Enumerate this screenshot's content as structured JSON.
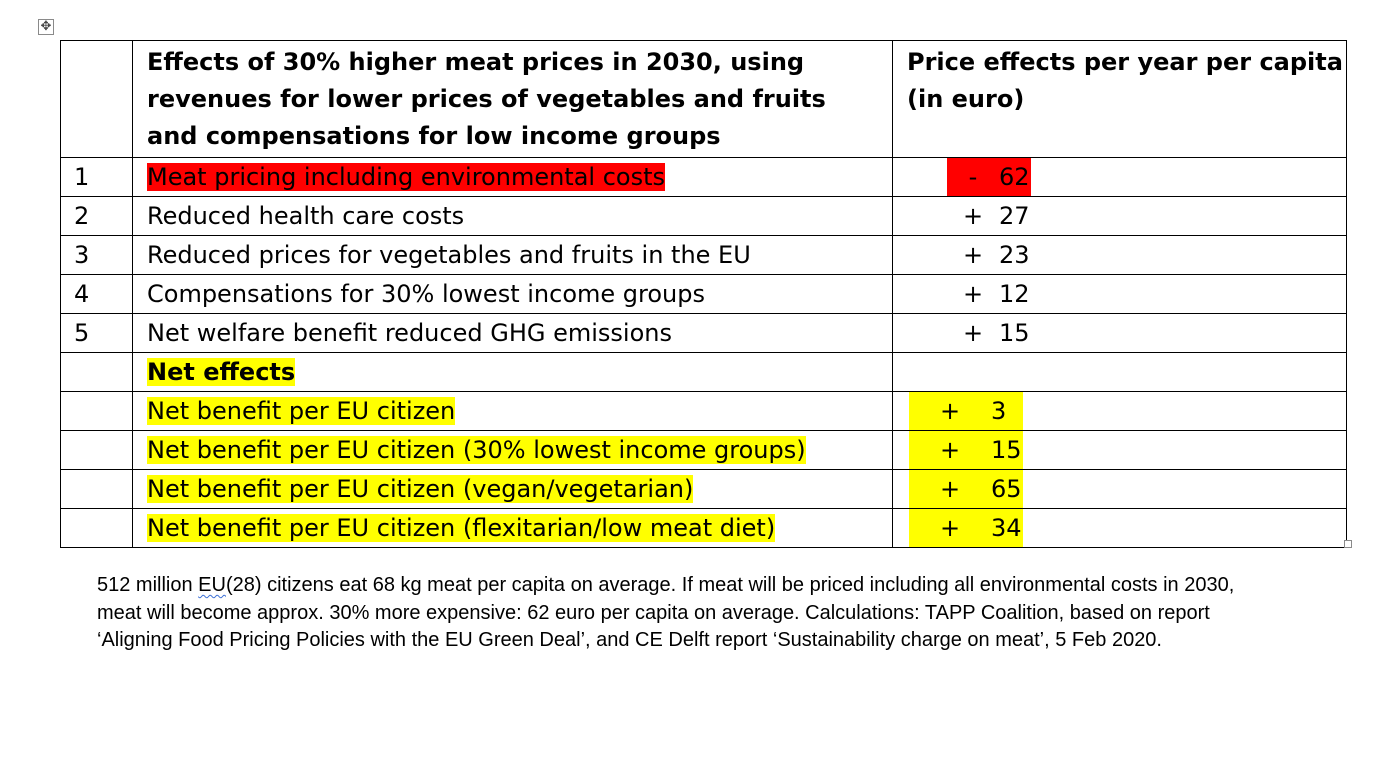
{
  "table": {
    "header": {
      "col_description": "Effects of 30% higher meat prices in 2030, using revenues for lower prices of vegetables and fruits and compensations for low income groups",
      "col_price": "Price effects per year per capita (in euro)"
    },
    "rows": [
      {
        "num": "1",
        "label": "Meat pricing including environmental costs",
        "sign": "-",
        "value": "62"
      },
      {
        "num": "2",
        "label": "Reduced health care costs",
        "sign": "+",
        "value": "27"
      },
      {
        "num": "3",
        "label": "Reduced prices for vegetables and fruits in the EU",
        "sign": "+",
        "value": "23"
      },
      {
        "num": "4",
        "label": "Compensations for 30% lowest income groups",
        "sign": "+",
        "value": "12"
      },
      {
        "num": "5",
        "label": "Net welfare benefit reduced GHG emissions",
        "sign": "+",
        "value": "15"
      },
      {
        "num": "",
        "label": "Net effects",
        "sign": "",
        "value": ""
      },
      {
        "num": "",
        "label": "Net benefit per EU citizen",
        "sign": "+",
        "value": "3"
      },
      {
        "num": "",
        "label": "Net benefit per EU citizen (30% lowest income groups)",
        "sign": "+",
        "value": "15"
      },
      {
        "num": "",
        "label": "Net benefit per EU citizen (vegan/vegetarian)",
        "sign": "+",
        "value": "65"
      },
      {
        "num": "",
        "label": "Net benefit per EU citizen (flexitarian/low meat diet)",
        "sign": "+",
        "value": "34"
      }
    ]
  },
  "footnote": {
    "part1": "512 million ",
    "flagged_word": "EU",
    "part2": "(28) citizens eat 68 kg meat per capita on average. If meat will be priced including all environmental costs in 2030, meat will become approx. 30% more expensive: 62 euro per capita on average. Calculations: TAPP Coalition, based on report ‘Aligning Food Pricing Policies with the EU Green Deal’, and CE Delft report ‘Sustainability charge on meat’, 5 Feb 2020."
  },
  "colors": {
    "highlight_red": "#ff0000",
    "highlight_yellow": "#ffff00",
    "spellcheck_underline": "#3b6fd6"
  },
  "icons": {
    "table_move_handle": "move-cross-icon",
    "table_resize_handle": "resize-square-icon"
  }
}
